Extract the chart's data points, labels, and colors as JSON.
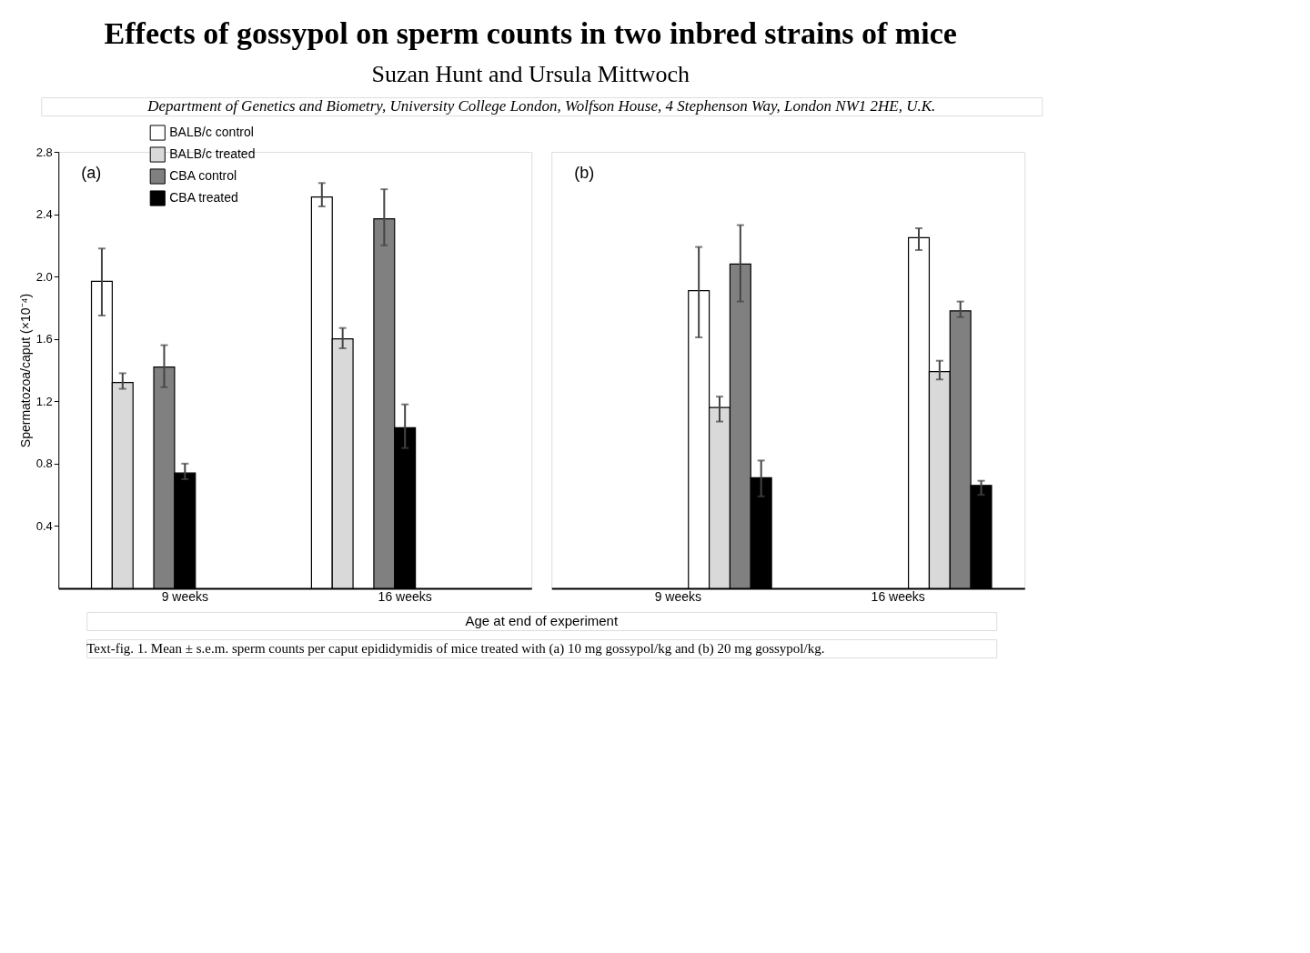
{
  "chart_data": [
    {
      "type": "bar",
      "title": "Effects of gossypol on sperm counts in two inbred strains of mice",
      "subtitle": "Suzan Hunt and Ursula Mittwoch",
      "ylabel": "Spermatozoa/caput (×10⁻⁴)",
      "xlabel": "Age at end of experiment",
      "annotations": [
        "Department of Genetics and Biometry, University College London, Wolfson House, 4 Stephenson Way, London NW1 2HE, U.K.",
        "(a)",
        "Text-fig. 1. Mean ± s.e.m. sperm counts per caput epididymidis of mice treated with (a) 10 mg gossypol/kg and (b) 20 mg gossypol/kg."
      ],
      "categories": [
        "9 weeks",
        "16 weeks"
      ],
      "ylim": [
        0,
        2.8
      ],
      "yticks": [
        0.4,
        0.8,
        1.2,
        1.6,
        {
          "value": 2,
          "label": "2.0"
        },
        2.4,
        2.8
      ],
      "legend": "top",
      "grid": false,
      "series": [
        {
          "name": "BALB/c control",
          "color": "#ffffff",
          "values": [
            1.97,
            2.51
          ],
          "errors": [
            [
              1.75,
              2.18
            ],
            [
              2.45,
              2.6
            ]
          ]
        },
        {
          "name": "BALB/c treated",
          "color": "#d9d9d9",
          "values": [
            1.32,
            1.6
          ],
          "errors": [
            [
              1.28,
              1.38
            ],
            [
              1.54,
              1.67
            ]
          ]
        },
        {
          "name": "CBA control",
          "color": "#808080",
          "values": [
            1.42,
            2.37
          ],
          "errors": [
            [
              1.29,
              1.56
            ],
            [
              2.2,
              2.56
            ]
          ]
        },
        {
          "name": "CBA treated",
          "color": "#000000",
          "values": [
            0.74,
            1.03
          ],
          "errors": [
            [
              0.7,
              0.8
            ],
            [
              0.9,
              1.18
            ]
          ]
        }
      ]
    },
    {
      "type": "bar",
      "annotations": [
        "(b)"
      ],
      "categories": [
        "9 weeks",
        "16 weeks"
      ],
      "ylim": [
        0,
        2.8
      ],
      "yticks": [
        0.4,
        0.8,
        1.2,
        1.6,
        2.0,
        2.4,
        2.8
      ],
      "tick_labels": "x",
      "legend": false,
      "grid": false,
      "series": [
        {
          "color": "#ffffff",
          "values": [
            1.91,
            2.25
          ],
          "errors": [
            [
              1.61,
              2.19
            ],
            [
              2.17,
              2.31
            ]
          ]
        },
        {
          "color": "#d9d9d9",
          "values": [
            1.16,
            1.39
          ],
          "errors": [
            [
              1.07,
              1.23
            ],
            [
              1.34,
              1.46
            ]
          ]
        },
        {
          "color": "#808080",
          "values": [
            2.08,
            1.78
          ],
          "errors": [
            [
              1.84,
              2.33
            ],
            [
              1.74,
              1.84
            ]
          ]
        },
        {
          "color": "#000000",
          "values": [
            0.71,
            0.66
          ],
          "errors": [
            [
              0.59,
              0.82
            ],
            [
              0.6,
              0.69
            ]
          ]
        }
      ]
    }
  ]
}
